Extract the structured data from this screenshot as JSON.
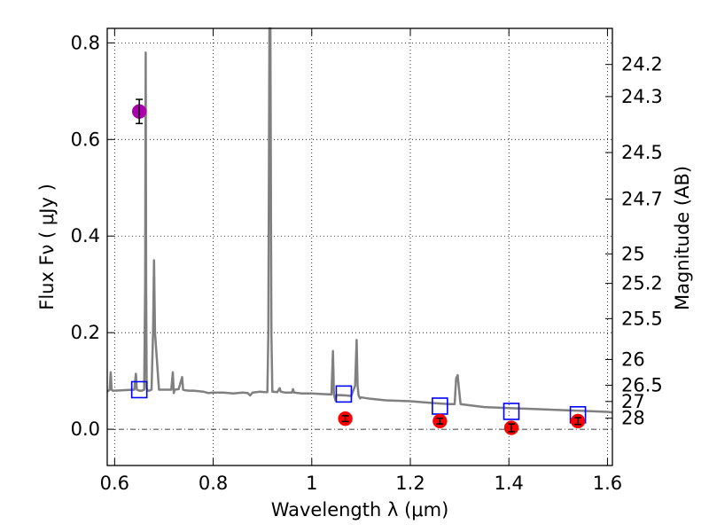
{
  "chart_data": {
    "type": "line",
    "title": "",
    "xlabel": "Wavelength  λ (μm)",
    "ylabel": "Flux  Fν  ( μJy )",
    "y2label": "Magnitude (AB)",
    "xlim": [
      0.585,
      1.61
    ],
    "ylim": [
      -0.075,
      0.83
    ],
    "grid": true,
    "x_ticks": [
      0.6,
      0.8,
      1.0,
      1.2,
      1.4,
      1.6
    ],
    "x_tick_labels": [
      "0.6",
      "0.8",
      "1",
      "1.2",
      "1.4",
      "1.6"
    ],
    "y_ticks": [
      0.0,
      0.2,
      0.4,
      0.6,
      0.8
    ],
    "y_tick_labels": [
      "0.0",
      "0.2",
      "0.4",
      "0.6",
      "0.8"
    ],
    "y2_tick_labels": [
      {
        "label": "24.2",
        "flux": 0.7553
      },
      {
        "label": "24.3",
        "flux": 0.6888
      },
      {
        "label": "24.5",
        "flux": 0.5729
      },
      {
        "label": "24.7",
        "flux": 0.4765
      },
      {
        "label": "25",
        "flux": 0.3631
      },
      {
        "label": "25.2",
        "flux": 0.302
      },
      {
        "label": "25.5",
        "flux": 0.2291
      },
      {
        "label": "26",
        "flux": 0.1445
      },
      {
        "label": "26.5",
        "flux": 0.0912
      },
      {
        "label": "27",
        "flux": 0.0575
      },
      {
        "label": "28",
        "flux": 0.0229
      }
    ],
    "series": [
      {
        "style": "model-spectrum",
        "color": "#808080",
        "x": [
          0.585,
          0.59,
          0.592,
          0.594,
          0.596,
          0.6,
          0.62,
          0.64,
          0.643,
          0.645,
          0.647,
          0.65,
          0.655,
          0.66,
          0.662,
          0.663,
          0.664,
          0.665,
          0.667,
          0.67,
          0.675,
          0.678,
          0.68,
          0.682,
          0.69,
          0.7,
          0.715,
          0.718,
          0.72,
          0.722,
          0.73,
          0.737,
          0.739,
          0.741,
          0.75,
          0.76,
          0.78,
          0.79,
          0.8,
          0.82,
          0.84,
          0.86,
          0.87,
          0.875,
          0.88,
          0.895,
          0.905,
          0.91,
          0.912,
          0.914,
          0.916,
          0.918,
          0.92,
          0.93,
          0.935,
          0.937,
          0.945,
          0.96,
          0.962,
          0.964,
          0.98,
          1.0,
          1.02,
          1.04,
          1.043,
          1.045,
          1.048,
          1.05,
          1.07,
          1.08,
          1.088,
          1.091,
          1.093,
          1.095,
          1.098,
          1.1,
          1.12,
          1.15,
          1.2,
          1.25,
          1.28,
          1.29,
          1.293,
          1.296,
          1.299,
          1.302,
          1.31,
          1.35,
          1.4,
          1.45,
          1.5,
          1.55,
          1.6,
          1.61
        ],
        "y": [
          0.078,
          0.082,
          0.118,
          0.082,
          0.08,
          0.08,
          0.081,
          0.082,
          0.115,
          0.082,
          0.081,
          0.08,
          0.08,
          0.082,
          0.3,
          0.78,
          0.3,
          0.085,
          0.08,
          0.08,
          0.082,
          0.2,
          0.35,
          0.2,
          0.082,
          0.082,
          0.082,
          0.118,
          0.075,
          0.082,
          0.083,
          0.108,
          0.082,
          0.081,
          0.08,
          0.08,
          0.078,
          0.075,
          0.076,
          0.076,
          0.074,
          0.076,
          0.075,
          0.07,
          0.076,
          0.078,
          0.077,
          0.077,
          0.2,
          0.83,
          0.83,
          0.2,
          0.078,
          0.077,
          0.085,
          0.078,
          0.076,
          0.076,
          0.083,
          0.076,
          0.074,
          0.074,
          0.073,
          0.072,
          0.162,
          0.072,
          0.06,
          0.071,
          0.07,
          0.069,
          0.09,
          0.185,
          0.09,
          0.07,
          0.064,
          0.066,
          0.063,
          0.06,
          0.058,
          0.054,
          0.052,
          0.052,
          0.105,
          0.112,
          0.08,
          0.052,
          0.051,
          0.046,
          0.044,
          0.042,
          0.04,
          0.038,
          0.036,
          0.035
        ]
      },
      {
        "style": "model-photometry",
        "color": "#0000ff",
        "x": [
          0.65,
          1.065,
          1.26,
          1.405,
          1.54
        ],
        "y": [
          0.082,
          0.073,
          0.048,
          0.037,
          0.03
        ]
      },
      {
        "style": "observed-photometry",
        "color": "#ff0000",
        "x": [
          1.068,
          1.26,
          1.405,
          1.54
        ],
        "y": [
          0.022,
          0.017,
          0.003,
          0.017
        ],
        "yerr": [
          0.006,
          0.006,
          0.008,
          0.007
        ]
      },
      {
        "style": "observed-photometry",
        "color": "#aa00aa",
        "x": [
          0.65
        ],
        "y": [
          0.658
        ],
        "yerr": [
          0.025
        ]
      }
    ]
  }
}
